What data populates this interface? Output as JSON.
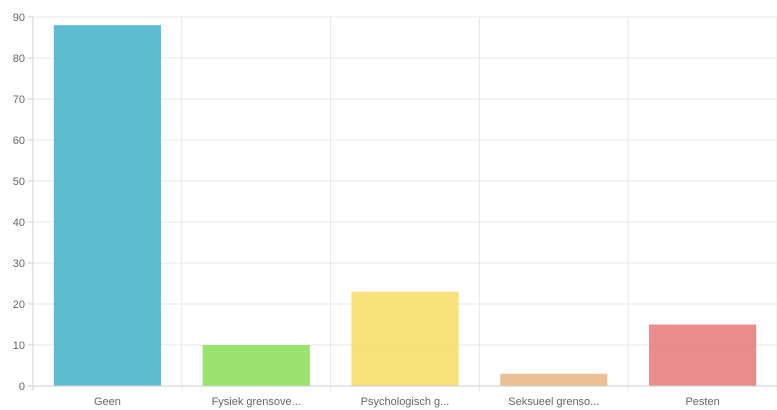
{
  "chart_data": {
    "type": "bar",
    "title": "",
    "xlabel": "",
    "ylabel": "",
    "categories": [
      "Geen",
      "Fysiek grensove...",
      "Psychologisch g...",
      "Seksueel grenso...",
      "Pesten"
    ],
    "values": [
      88,
      10,
      23,
      3,
      15
    ],
    "colors": [
      "#4bb5cc",
      "#8ee05e",
      "#f6de6a",
      "#ebb88a",
      "#e87f7f"
    ],
    "ylim": [
      0,
      90
    ],
    "yticks": [
      0,
      10,
      20,
      30,
      40,
      50,
      60,
      70,
      80,
      90
    ],
    "grid": true,
    "legend": "none"
  }
}
